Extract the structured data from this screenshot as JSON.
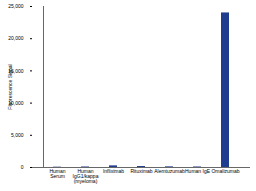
{
  "chart_data": {
    "type": "bar",
    "y_label": "Fluorescence Signal",
    "categories": [
      "Human Serum",
      "Human IgG1/kappa (myeloma)",
      "Infliximab",
      "Rituximab",
      "Alemtuzumab",
      "Human IgE",
      "Omalizumab"
    ],
    "values": [
      50,
      80,
      250,
      150,
      100,
      80,
      24000
    ],
    "color": "#1f3d8f",
    "ylim": [
      0,
      25000
    ],
    "yticks": [
      0,
      {
        "value": 5000,
        "label": "5,000"
      },
      {
        "value": 10000,
        "label": "10,000"
      },
      {
        "value": 15000,
        "label": "15,000"
      },
      {
        "value": 20000,
        "label": "20,000"
      },
      {
        "value": 25000,
        "label": "25,000"
      }
    ],
    "grid": false
  }
}
